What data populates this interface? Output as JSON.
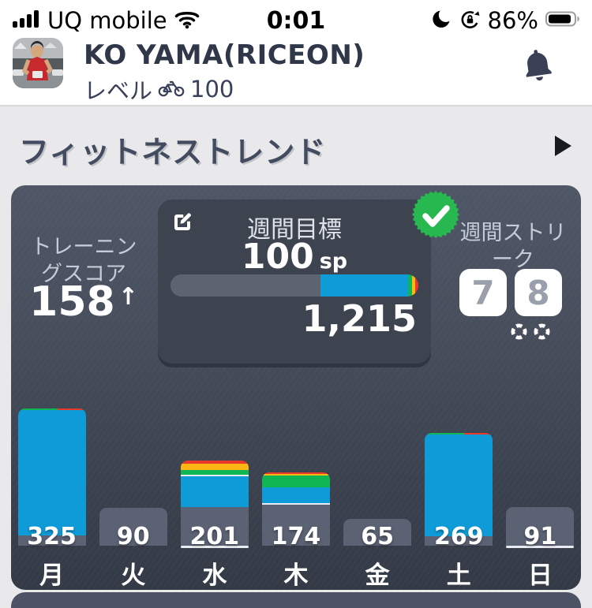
{
  "status_bar": {
    "carrier": "UQ mobile",
    "time": "0:01",
    "battery_percent": "86%",
    "icons": [
      "cellular-signal-icon",
      "wifi-icon",
      "focus-moon-icon",
      "rotation-lock-icon",
      "battery-icon"
    ]
  },
  "header": {
    "username": "KO YAMA(RICEON)",
    "level_label": "レベル",
    "level_value": "100",
    "icons": [
      "avatar",
      "bike-level-icon",
      "notification-bell-icon"
    ]
  },
  "section": {
    "title": "フィットネストレンド",
    "icons": [
      "section-forward-arrow"
    ]
  },
  "fitness_card": {
    "training_score": {
      "label": "トレーニングスコア",
      "value": "158",
      "trend_arrow": "↑"
    },
    "weekly_goal": {
      "label": "週間目標",
      "goal": "100",
      "unit": "sp",
      "current": "1,215",
      "progress_segments": [
        [
          "track",
          60.5
        ],
        [
          "blue",
          35.3
        ],
        [
          "green",
          1.6
        ],
        [
          "yellow",
          1.2
        ],
        [
          "red",
          1.4
        ]
      ],
      "icons": [
        "edit-goal-icon",
        "goal-complete-check-icon"
      ]
    },
    "weekly_streak": {
      "label": "週間ストリーク",
      "current": "7",
      "next": "8",
      "icons": [
        "streak-freeze-buoy-icon",
        "streak-freeze-buoy-icon"
      ]
    }
  },
  "chart_data": {
    "type": "bar",
    "title": "",
    "categories": [
      "月",
      "火",
      "水",
      "木",
      "金",
      "土",
      "日"
    ],
    "values": [
      325,
      90,
      201,
      174,
      65,
      269,
      91
    ],
    "unit": "sp",
    "ylim": [
      0,
      330
    ],
    "grid": false,
    "legend": "none",
    "today_category": "日",
    "underlined_categories": [
      "水",
      "日"
    ],
    "palette": {
      "grey": "#5b6273",
      "blue": "#0e9bd8",
      "green": "#10b554",
      "yellow": "#fdb614",
      "red": "#e8392b",
      "white": "#e9edf2",
      "track": "#5d6470"
    },
    "bars": [
      {
        "label": "月",
        "value": 325,
        "height": 174,
        "today": false,
        "underline": false,
        "segments": [
          [
            "stripe",
            2
          ],
          [
            "blue",
            159
          ],
          [
            "grey",
            13
          ]
        ]
      },
      {
        "label": "火",
        "value": 90,
        "height": 48,
        "today": false,
        "underline": false,
        "segments": [
          [
            "grey",
            48
          ]
        ]
      },
      {
        "label": "水",
        "value": 201,
        "height": 108,
        "today": false,
        "underline": true,
        "segments": [
          [
            "red",
            4
          ],
          [
            "yellow",
            8
          ],
          [
            "green",
            6
          ],
          [
            "white",
            2
          ],
          [
            "blue",
            39
          ],
          [
            "grey",
            49
          ]
        ]
      },
      {
        "label": "木",
        "value": 174,
        "height": 93,
        "today": false,
        "underline": false,
        "segments": [
          [
            "red",
            2
          ],
          [
            "yellow",
            2
          ],
          [
            "green",
            15
          ],
          [
            "blue",
            20
          ],
          [
            "white",
            2
          ],
          [
            "grey",
            52
          ]
        ]
      },
      {
        "label": "金",
        "value": 65,
        "height": 34,
        "today": false,
        "underline": false,
        "segments": [
          [
            "grey",
            34
          ]
        ]
      },
      {
        "label": "土",
        "value": 269,
        "height": 143,
        "today": false,
        "underline": false,
        "segments": [
          [
            "stripe",
            2
          ],
          [
            "blue",
            129
          ],
          [
            "grey",
            12
          ]
        ]
      },
      {
        "label": "日",
        "value": 91,
        "height": 49,
        "today": true,
        "underline": true,
        "segments": [
          [
            "grey",
            49
          ]
        ]
      }
    ]
  }
}
